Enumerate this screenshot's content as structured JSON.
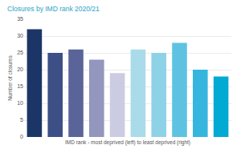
{
  "chart_data": {
    "type": "bar",
    "title": "Closures by IMD rank 2020/21",
    "x_label": "IMD rank - most deprived (left) to least deprived (right)",
    "y_label": "Number of closures",
    "categories": [
      null,
      null,
      null,
      null,
      null,
      null,
      null,
      null,
      null,
      null
    ],
    "values": [
      32,
      25,
      26,
      23,
      19,
      26,
      25,
      28,
      20,
      18
    ],
    "colors": [
      "#1c3567",
      "#3d4f87",
      "#5a6499",
      "#9396bd",
      "#cbcce2",
      "#a9dbea",
      "#8ed2e8",
      "#5ec3e2",
      "#36b5de",
      "#00aad3"
    ],
    "ylim": [
      0,
      35
    ],
    "yticks": [
      0,
      5,
      10,
      15,
      20,
      25,
      30,
      35
    ],
    "grid": true
  }
}
